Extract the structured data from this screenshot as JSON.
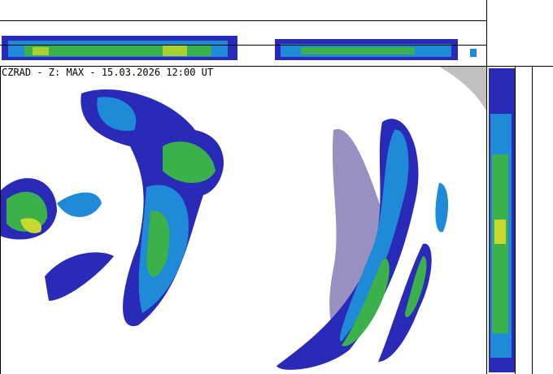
{
  "header": {
    "title": "CZRAD - Z: MAX - 15.03.2026 12:00 UT"
  }
}
